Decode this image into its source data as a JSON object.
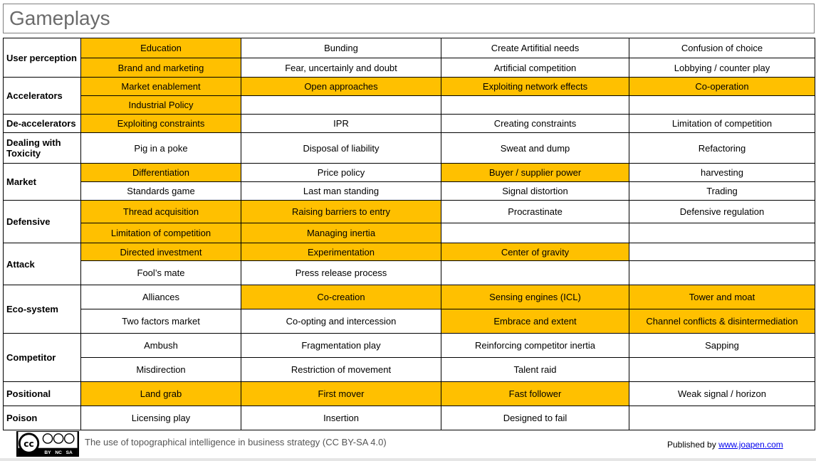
{
  "header": {
    "title": "Gameplays"
  },
  "table": {
    "groups": [
      {
        "label": "User perception",
        "rows": [
          [
            {
              "text": "Education",
              "highlight": true
            },
            {
              "text": "Bunding",
              "highlight": false
            },
            {
              "text": "Create Artifitial needs",
              "highlight": false
            },
            {
              "text": "Confusion of choice",
              "highlight": false
            }
          ],
          [
            {
              "text": "Brand and marketing",
              "highlight": true
            },
            {
              "text": "Fear, uncertainly and doubt",
              "highlight": false
            },
            {
              "text": "Artificial competition",
              "highlight": false
            },
            {
              "text": "Lobbying / counter play",
              "highlight": false
            }
          ]
        ]
      },
      {
        "label": "Accelerators",
        "rows": [
          [
            {
              "text": "Market enablement",
              "highlight": true
            },
            {
              "text": "Open approaches",
              "highlight": true
            },
            {
              "text": "Exploiting network effects",
              "highlight": true
            },
            {
              "text": "Co-operation",
              "highlight": true
            }
          ],
          [
            {
              "text": "Industrial Policy",
              "highlight": true
            },
            {
              "text": null,
              "highlight": false
            },
            {
              "text": null,
              "highlight": false
            },
            {
              "text": null,
              "highlight": false
            }
          ]
        ]
      },
      {
        "label": "De-accelerators",
        "rows": [
          [
            {
              "text": "Exploiting constraints",
              "highlight": true
            },
            {
              "text": "IPR",
              "highlight": false
            },
            {
              "text": "Creating constraints",
              "highlight": false
            },
            {
              "text": "Limitation of competition",
              "highlight": false
            }
          ]
        ]
      },
      {
        "label": "Dealing with Toxicity",
        "rows": [
          [
            {
              "text": "Pig in a poke",
              "highlight": false
            },
            {
              "text": "Disposal of liability",
              "highlight": false
            },
            {
              "text": "Sweat and dump",
              "highlight": false
            },
            {
              "text": "Refactoring",
              "highlight": false
            }
          ]
        ]
      },
      {
        "label": "Market",
        "rows": [
          [
            {
              "text": "Differentiation",
              "highlight": true
            },
            {
              "text": "Price policy",
              "highlight": false
            },
            {
              "text": "Buyer / supplier power",
              "highlight": true
            },
            {
              "text": "harvesting",
              "highlight": false
            }
          ],
          [
            {
              "text": "Standards game",
              "highlight": false
            },
            {
              "text": "Last man standing",
              "highlight": false
            },
            {
              "text": "Signal distortion",
              "highlight": false
            },
            {
              "text": "Trading",
              "highlight": false
            }
          ]
        ]
      },
      {
        "label": "Defensive",
        "rows": [
          [
            {
              "text": "Thread acquisition",
              "highlight": true
            },
            {
              "text": "Raising barriers to entry",
              "highlight": true
            },
            {
              "text": "Procrastinate",
              "highlight": false
            },
            {
              "text": "Defensive regulation",
              "highlight": false
            }
          ],
          [
            {
              "text": "Limitation of competition",
              "highlight": true
            },
            {
              "text": "Managing inertia",
              "highlight": true
            },
            {
              "text": null,
              "highlight": false
            },
            {
              "text": null,
              "highlight": false
            }
          ]
        ]
      },
      {
        "label": "Attack",
        "rows": [
          [
            {
              "text": "Directed investment",
              "highlight": true
            },
            {
              "text": "Experimentation",
              "highlight": true
            },
            {
              "text": "Center of gravity",
              "highlight": true
            },
            {
              "text": null,
              "highlight": false
            }
          ],
          [
            {
              "text": "Fool’s mate",
              "highlight": false
            },
            {
              "text": "Press release process",
              "highlight": false
            },
            {
              "text": null,
              "highlight": false
            },
            {
              "text": null,
              "highlight": false
            }
          ]
        ]
      },
      {
        "label": "Eco-system",
        "rows": [
          [
            {
              "text": "Alliances",
              "highlight": false
            },
            {
              "text": "Co-creation",
              "highlight": true
            },
            {
              "text": "Sensing engines (ICL)",
              "highlight": true
            },
            {
              "text": "Tower and moat",
              "highlight": true
            }
          ],
          [
            {
              "text": "Two factors market",
              "highlight": false
            },
            {
              "text": "Co-opting and intercession",
              "highlight": false
            },
            {
              "text": "Embrace and extent",
              "highlight": true
            },
            {
              "text": "Channel conflicts & disintermediation",
              "highlight": true
            }
          ]
        ]
      },
      {
        "label": "Competitor",
        "rows": [
          [
            {
              "text": "Ambush",
              "highlight": false
            },
            {
              "text": "Fragmentation play",
              "highlight": false
            },
            {
              "text": "Reinforcing competitor inertia",
              "highlight": false
            },
            {
              "text": "Sapping",
              "highlight": false
            }
          ],
          [
            {
              "text": "Misdirection",
              "highlight": false
            },
            {
              "text": "Restriction of movement",
              "highlight": false
            },
            {
              "text": "Talent raid",
              "highlight": false
            },
            {
              "text": null,
              "highlight": false
            }
          ]
        ]
      },
      {
        "label": "Positional",
        "rows": [
          [
            {
              "text": "Land grab",
              "highlight": true
            },
            {
              "text": "First mover",
              "highlight": true
            },
            {
              "text": "Fast follower",
              "highlight": true
            },
            {
              "text": "Weak signal / horizon",
              "highlight": false
            }
          ]
        ]
      },
      {
        "label": "Poison",
        "rows": [
          [
            {
              "text": "Licensing play",
              "highlight": false
            },
            {
              "text": "Insertion",
              "highlight": false
            },
            {
              "text": "Designed to fail",
              "highlight": false
            },
            {
              "text": null,
              "highlight": false
            }
          ]
        ]
      }
    ]
  },
  "footer": {
    "badge": {
      "mark": "cc",
      "terms": [
        "BY",
        "NC",
        "SA"
      ]
    },
    "license": "The use of topographical intelligence in business strategy (CC BY-SA 4.0)",
    "published_by": "Published by",
    "link": "www.joapen.com"
  }
}
